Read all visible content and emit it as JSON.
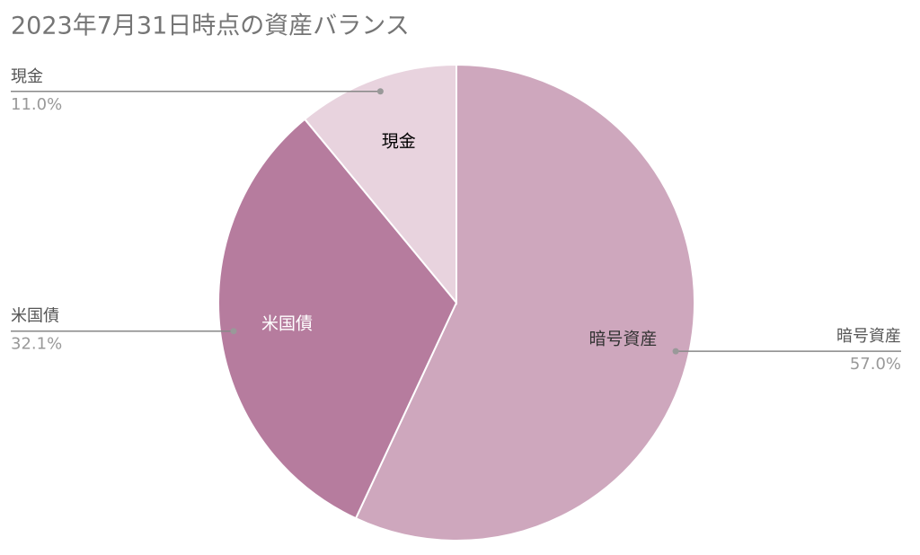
{
  "chart_data": {
    "type": "pie",
    "title": "2023年7月31日時点の資産バランス",
    "categories": [
      "暗号資産",
      "米国債",
      "現金"
    ],
    "values": [
      57,
      32.1,
      11
    ],
    "value_labels": [
      "57.0%",
      "32.1%",
      "11.0%"
    ],
    "colors": [
      "#cea7bd",
      "#b67c9e",
      "#e8d3de"
    ],
    "label_colors": [
      "#333333",
      "#ffffff",
      "#000000"
    ]
  }
}
